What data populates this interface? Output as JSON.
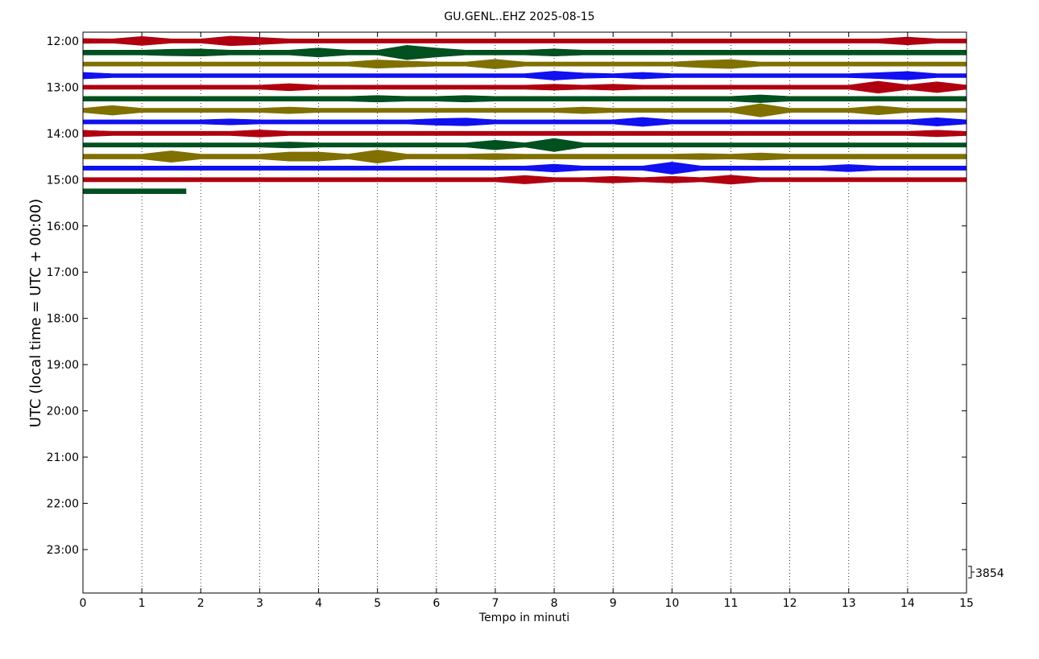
{
  "chart_data": {
    "type": "dayplot",
    "title": "GU.GENL..EHZ 2025-08-15",
    "xlabel": "Tempo in minuti",
    "ylabel": "UTC (local time = UTC + 00:00)",
    "xlim": [
      0,
      15
    ],
    "xticks": [
      0,
      1,
      2,
      3,
      4,
      5,
      6,
      7,
      8,
      9,
      10,
      11,
      12,
      13,
      14,
      15
    ],
    "ylim": [
      11.81,
      23.94
    ],
    "yreverse": true,
    "yticks": [
      {
        "value": 12,
        "label": "12:00"
      },
      {
        "value": 13,
        "label": "13:00"
      },
      {
        "value": 14,
        "label": "14:00"
      },
      {
        "value": 15,
        "label": "15:00"
      },
      {
        "value": 16,
        "label": "16:00"
      },
      {
        "value": 17,
        "label": "17:00"
      },
      {
        "value": 18,
        "label": "18:00"
      },
      {
        "value": 19,
        "label": "19:00"
      },
      {
        "value": 20,
        "label": "20:00"
      },
      {
        "value": 21,
        "label": "21:00"
      },
      {
        "value": 22,
        "label": "22:00"
      },
      {
        "value": 23,
        "label": "23:00"
      }
    ],
    "grid": true,
    "scale": 3854,
    "x": [
      0,
      0.5,
      1,
      1.5,
      2,
      2.5,
      3,
      3.5,
      4,
      4.5,
      5,
      5.5,
      6,
      6.5,
      7,
      7.5,
      8,
      8.5,
      9,
      9.5,
      10,
      10.5,
      11,
      11.5,
      12,
      12.5,
      13,
      13.5,
      14,
      14.5,
      15
    ],
    "series": [
      {
        "offset": 12,
        "color": "#b00010",
        "values": [
          800,
          700,
          1500,
          700,
          700,
          1600,
          1200,
          700,
          700,
          700,
          700,
          700,
          700,
          700,
          700,
          700,
          700,
          700,
          700,
          700,
          700,
          700,
          700,
          700,
          700,
          700,
          700,
          700,
          1300,
          700,
          700
        ]
      },
      {
        "offset": 12.25,
        "color": "#005020",
        "values": [
          800,
          800,
          800,
          1100,
          1200,
          800,
          800,
          800,
          1500,
          800,
          800,
          2400,
          1500,
          800,
          800,
          800,
          1200,
          800,
          800,
          800,
          800,
          800,
          800,
          800,
          800,
          800,
          800,
          800,
          800,
          800,
          800
        ]
      },
      {
        "offset": 12.5,
        "color": "#807000",
        "values": [
          700,
          700,
          700,
          700,
          700,
          700,
          700,
          700,
          700,
          700,
          1400,
          1000,
          700,
          700,
          1600,
          700,
          700,
          700,
          700,
          700,
          700,
          1200,
          1500,
          700,
          700,
          700,
          700,
          700,
          700,
          700,
          700
        ]
      },
      {
        "offset": 12.75,
        "color": "#1010f0",
        "values": [
          1100,
          650,
          650,
          650,
          650,
          650,
          650,
          650,
          650,
          650,
          650,
          650,
          650,
          650,
          650,
          650,
          1500,
          900,
          650,
          1100,
          650,
          650,
          650,
          650,
          650,
          650,
          650,
          1000,
          1400,
          650,
          650
        ]
      },
      {
        "offset": 13,
        "color": "#b00010",
        "values": [
          700,
          700,
          700,
          700,
          700,
          700,
          700,
          1200,
          700,
          700,
          700,
          700,
          700,
          700,
          700,
          700,
          1000,
          700,
          1000,
          700,
          700,
          700,
          700,
          700,
          700,
          700,
          700,
          2000,
          800,
          1800,
          700
        ]
      },
      {
        "offset": 13.25,
        "color": "#005020",
        "values": [
          800,
          800,
          800,
          800,
          800,
          800,
          800,
          800,
          800,
          800,
          1100,
          800,
          800,
          1100,
          800,
          800,
          800,
          800,
          800,
          800,
          800,
          800,
          800,
          1300,
          800,
          800,
          800,
          800,
          800,
          800,
          800
        ]
      },
      {
        "offset": 13.5,
        "color": "#807000",
        "values": [
          700,
          1600,
          700,
          700,
          700,
          700,
          700,
          1100,
          700,
          700,
          700,
          700,
          700,
          700,
          700,
          700,
          700,
          1100,
          700,
          700,
          700,
          700,
          700,
          2200,
          700,
          700,
          700,
          1500,
          700,
          700,
          700
        ]
      },
      {
        "offset": 13.75,
        "color": "#1010f0",
        "values": [
          700,
          700,
          700,
          700,
          700,
          1000,
          700,
          700,
          700,
          700,
          700,
          700,
          1100,
          1300,
          700,
          700,
          700,
          700,
          700,
          1500,
          700,
          700,
          700,
          700,
          700,
          700,
          700,
          700,
          700,
          1400,
          700
        ]
      },
      {
        "offset": 14,
        "color": "#b00010",
        "values": [
          1100,
          700,
          700,
          700,
          700,
          700,
          1200,
          700,
          700,
          700,
          700,
          700,
          700,
          700,
          700,
          700,
          700,
          700,
          700,
          700,
          700,
          700,
          700,
          700,
          700,
          700,
          700,
          700,
          700,
          1100,
          700
        ]
      },
      {
        "offset": 14.25,
        "color": "#005020",
        "values": [
          700,
          700,
          700,
          700,
          700,
          700,
          700,
          1000,
          700,
          700,
          700,
          700,
          700,
          700,
          1600,
          700,
          2200,
          700,
          700,
          700,
          700,
          700,
          700,
          700,
          700,
          700,
          700,
          700,
          700,
          700,
          700
        ]
      },
      {
        "offset": 14.5,
        "color": "#807000",
        "values": [
          800,
          800,
          800,
          1900,
          800,
          800,
          800,
          1500,
          1500,
          800,
          2200,
          800,
          800,
          800,
          1000,
          800,
          800,
          800,
          800,
          800,
          800,
          1000,
          800,
          1200,
          800,
          800,
          800,
          800,
          800,
          800,
          800
        ]
      },
      {
        "offset": 14.75,
        "color": "#1010f0",
        "values": [
          700,
          700,
          700,
          700,
          700,
          700,
          700,
          700,
          700,
          700,
          700,
          700,
          700,
          700,
          700,
          700,
          1300,
          700,
          700,
          700,
          2000,
          700,
          700,
          700,
          700,
          700,
          1200,
          700,
          700,
          700,
          700
        ]
      },
      {
        "offset": 15,
        "color": "#b00010",
        "values": [
          700,
          700,
          700,
          700,
          700,
          700,
          700,
          700,
          700,
          700,
          700,
          700,
          700,
          700,
          700,
          1400,
          700,
          700,
          1100,
          700,
          1100,
          700,
          1500,
          700,
          700,
          700,
          700,
          700,
          700,
          700,
          700
        ]
      },
      {
        "offset": 15.25,
        "color": "#005020",
        "x": [
          0,
          0.5,
          1,
          1.5,
          1.75
        ],
        "values": [
          800,
          800,
          800,
          800,
          800
        ]
      }
    ]
  }
}
